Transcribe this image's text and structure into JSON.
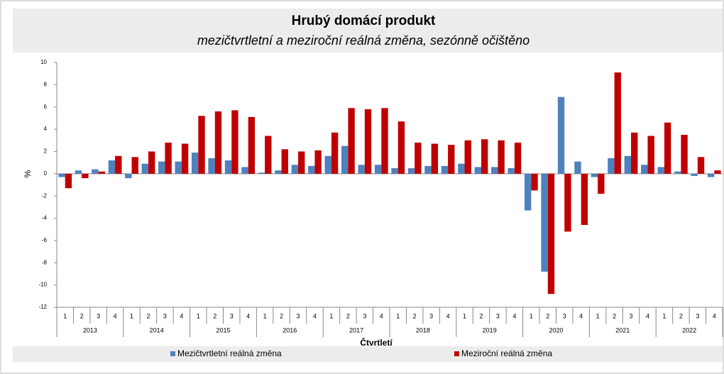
{
  "chart_data": {
    "type": "bar",
    "title": "Hrubý domácí produkt",
    "subtitle": "mezičtvrtletní a meziroční reálná změna, sezónně očištěno",
    "ylabel": "%",
    "xlabel": "Čtvrtletí",
    "categories": [
      "1",
      "2",
      "3",
      "4",
      "1",
      "2",
      "3",
      "4",
      "1",
      "2",
      "3",
      "4",
      "1",
      "2",
      "3",
      "4",
      "1",
      "2",
      "3",
      "4",
      "1",
      "2",
      "3",
      "4",
      "1",
      "2",
      "3",
      "4",
      "1",
      "2",
      "3",
      "4",
      "1",
      "2",
      "3",
      "4",
      "1",
      "2",
      "3",
      "4"
    ],
    "groups": [
      "2013",
      "2014",
      "2015",
      "2016",
      "2017",
      "2018",
      "2019",
      "2020",
      "2021",
      "2022"
    ],
    "series": [
      {
        "name": "Mezičtvrtletní reálná změna",
        "color": "#4f81bd",
        "values": [
          -0.3,
          0.3,
          0.4,
          1.2,
          -0.4,
          0.9,
          1.1,
          1.1,
          1.9,
          1.4,
          1.2,
          0.6,
          0.1,
          0.3,
          0.8,
          0.7,
          1.6,
          2.5,
          0.8,
          0.8,
          0.5,
          0.5,
          0.7,
          0.7,
          0.9,
          0.6,
          0.6,
          0.5,
          -3.3,
          -8.8,
          6.9,
          1.1,
          -0.3,
          1.4,
          1.6,
          0.8,
          0.6,
          0.2,
          -0.2,
          -0.3
        ]
      },
      {
        "name": "Meziroční reálná změna",
        "color": "#c00000",
        "values": [
          -1.3,
          -0.4,
          0.2,
          1.6,
          1.5,
          2.0,
          2.8,
          2.7,
          5.2,
          5.6,
          5.7,
          5.1,
          3.4,
          2.2,
          2.0,
          2.1,
          3.7,
          5.9,
          5.8,
          5.9,
          4.7,
          2.8,
          2.7,
          2.6,
          3.0,
          3.1,
          3.0,
          2.8,
          -1.5,
          -10.8,
          -5.2,
          -4.6,
          -1.8,
          9.1,
          3.7,
          3.4,
          4.6,
          3.5,
          1.5,
          0.3
        ]
      }
    ],
    "ylim": [
      -12,
      10
    ],
    "yticks": [
      -12,
      -10,
      -8,
      -6,
      -4,
      -2,
      0,
      2,
      4,
      6,
      8,
      10
    ],
    "grid": false
  }
}
